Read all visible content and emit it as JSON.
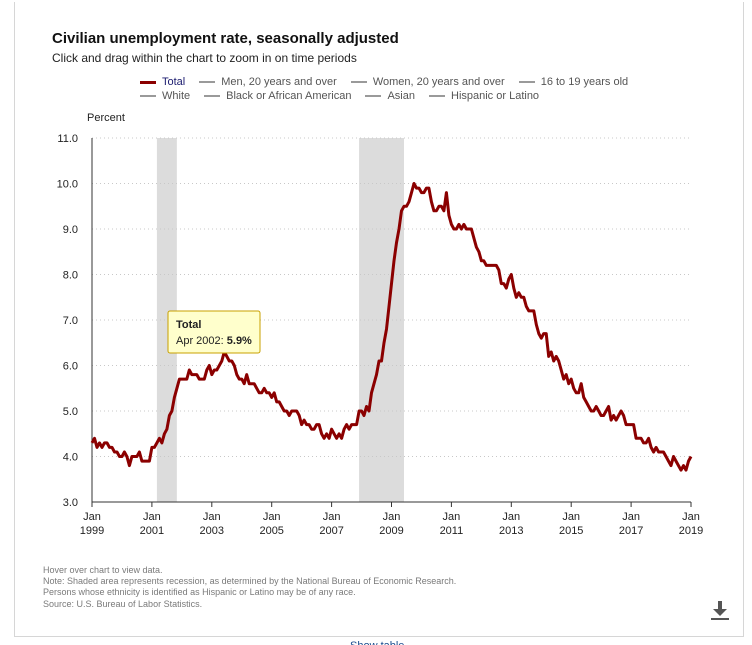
{
  "title": "Civilian unemployment rate, seasonally adjusted",
  "subtitle": "Click and drag within the chart to zoom in on time periods",
  "legend_row1": [
    "Total",
    "Men, 20 years and over",
    "Women, 20 years and over",
    "16 to 19 years old"
  ],
  "legend_row2": [
    "White",
    "Black or African American",
    "Asian",
    "Hispanic or Latino"
  ],
  "tooltip": {
    "title": "Total",
    "label": "Apr 2002: ",
    "value": "5.9%"
  },
  "notes": [
    "Hover over chart to view data.",
    "Note: Shaded area represents recession, as determined by the National Bureau of Economic Research.",
    "Persons whose ethnicity is identified as Hispanic or Latino may be of any race.",
    "Source: U.S. Bureau of Labor Statistics."
  ],
  "bottom_link": "Show table",
  "colors": {
    "series": "#8b0000",
    "recession": "#dcdcdc",
    "grid": "#c8c8c8",
    "legend_inactive": "#9a9a9a",
    "tooltip_bg": "#ffffcc",
    "tooltip_border": "#c8a000"
  },
  "icons": {
    "download": "download-icon"
  },
  "chart_data": {
    "type": "line",
    "title": "Civilian unemployment rate, seasonally adjusted",
    "ylabel": "Percent",
    "xlabel": "",
    "ylim": [
      3.0,
      11.0
    ],
    "y_ticks": [
      "3.0",
      "4.0",
      "5.0",
      "6.0",
      "7.0",
      "8.0",
      "9.0",
      "10.0",
      "11.0"
    ],
    "x_ticks": [
      [
        "Jan",
        "1999"
      ],
      [
        "Jan",
        "2001"
      ],
      [
        "Jan",
        "2003"
      ],
      [
        "Jan",
        "2005"
      ],
      [
        "Jan",
        "2007"
      ],
      [
        "Jan",
        "2009"
      ],
      [
        "Jan",
        "2011"
      ],
      [
        "Jan",
        "2013"
      ],
      [
        "Jan",
        "2015"
      ],
      [
        "Jan",
        "2017"
      ],
      [
        "Jan",
        "2019"
      ]
    ],
    "x_tick_dates": [
      "1999-01",
      "2001-01",
      "2003-01",
      "2005-01",
      "2007-01",
      "2009-01",
      "2011-01",
      "2013-01",
      "2015-01",
      "2017-01",
      "2019-01"
    ],
    "grid": true,
    "recessions": [
      [
        "2001-03",
        "2001-11"
      ],
      [
        "2007-12",
        "2009-06"
      ]
    ],
    "series": [
      {
        "name": "Total",
        "points": [
          [
            "1999-01",
            4.3
          ],
          [
            "1999-02",
            4.4
          ],
          [
            "1999-03",
            4.2
          ],
          [
            "1999-04",
            4.3
          ],
          [
            "1999-05",
            4.2
          ],
          [
            "1999-06",
            4.3
          ],
          [
            "1999-07",
            4.3
          ],
          [
            "1999-08",
            4.2
          ],
          [
            "1999-09",
            4.2
          ],
          [
            "1999-10",
            4.1
          ],
          [
            "1999-11",
            4.1
          ],
          [
            "1999-12",
            4.0
          ],
          [
            "2000-01",
            4.0
          ],
          [
            "2000-02",
            4.1
          ],
          [
            "2000-03",
            4.0
          ],
          [
            "2000-04",
            3.8
          ],
          [
            "2000-05",
            4.0
          ],
          [
            "2000-06",
            4.0
          ],
          [
            "2000-07",
            4.0
          ],
          [
            "2000-08",
            4.1
          ],
          [
            "2000-09",
            3.9
          ],
          [
            "2000-10",
            3.9
          ],
          [
            "2000-11",
            3.9
          ],
          [
            "2000-12",
            3.9
          ],
          [
            "2001-01",
            4.2
          ],
          [
            "2001-02",
            4.2
          ],
          [
            "2001-03",
            4.3
          ],
          [
            "2001-04",
            4.4
          ],
          [
            "2001-05",
            4.3
          ],
          [
            "2001-06",
            4.5
          ],
          [
            "2001-07",
            4.6
          ],
          [
            "2001-08",
            4.9
          ],
          [
            "2001-09",
            5.0
          ],
          [
            "2001-10",
            5.3
          ],
          [
            "2001-11",
            5.5
          ],
          [
            "2001-12",
            5.7
          ],
          [
            "2002-01",
            5.7
          ],
          [
            "2002-02",
            5.7
          ],
          [
            "2002-03",
            5.7
          ],
          [
            "2002-04",
            5.9
          ],
          [
            "2002-05",
            5.8
          ],
          [
            "2002-06",
            5.8
          ],
          [
            "2002-07",
            5.8
          ],
          [
            "2002-08",
            5.7
          ],
          [
            "2002-09",
            5.7
          ],
          [
            "2002-10",
            5.7
          ],
          [
            "2002-11",
            5.9
          ],
          [
            "2002-12",
            6.0
          ],
          [
            "2003-01",
            5.8
          ],
          [
            "2003-02",
            5.9
          ],
          [
            "2003-03",
            5.9
          ],
          [
            "2003-04",
            6.0
          ],
          [
            "2003-05",
            6.1
          ],
          [
            "2003-06",
            6.3
          ],
          [
            "2003-07",
            6.2
          ],
          [
            "2003-08",
            6.1
          ],
          [
            "2003-09",
            6.1
          ],
          [
            "2003-10",
            6.0
          ],
          [
            "2003-11",
            5.8
          ],
          [
            "2003-12",
            5.7
          ],
          [
            "2004-01",
            5.7
          ],
          [
            "2004-02",
            5.6
          ],
          [
            "2004-03",
            5.8
          ],
          [
            "2004-04",
            5.6
          ],
          [
            "2004-05",
            5.6
          ],
          [
            "2004-06",
            5.6
          ],
          [
            "2004-07",
            5.5
          ],
          [
            "2004-08",
            5.4
          ],
          [
            "2004-09",
            5.4
          ],
          [
            "2004-10",
            5.5
          ],
          [
            "2004-11",
            5.4
          ],
          [
            "2004-12",
            5.4
          ],
          [
            "2005-01",
            5.3
          ],
          [
            "2005-02",
            5.4
          ],
          [
            "2005-03",
            5.2
          ],
          [
            "2005-04",
            5.2
          ],
          [
            "2005-05",
            5.1
          ],
          [
            "2005-06",
            5.0
          ],
          [
            "2005-07",
            5.0
          ],
          [
            "2005-08",
            4.9
          ],
          [
            "2005-09",
            5.0
          ],
          [
            "2005-10",
            5.0
          ],
          [
            "2005-11",
            5.0
          ],
          [
            "2005-12",
            4.9
          ],
          [
            "2006-01",
            4.7
          ],
          [
            "2006-02",
            4.8
          ],
          [
            "2006-03",
            4.7
          ],
          [
            "2006-04",
            4.7
          ],
          [
            "2006-05",
            4.6
          ],
          [
            "2006-06",
            4.6
          ],
          [
            "2006-07",
            4.7
          ],
          [
            "2006-08",
            4.7
          ],
          [
            "2006-09",
            4.5
          ],
          [
            "2006-10",
            4.4
          ],
          [
            "2006-11",
            4.5
          ],
          [
            "2006-12",
            4.4
          ],
          [
            "2007-01",
            4.6
          ],
          [
            "2007-02",
            4.5
          ],
          [
            "2007-03",
            4.4
          ],
          [
            "2007-04",
            4.5
          ],
          [
            "2007-05",
            4.4
          ],
          [
            "2007-06",
            4.6
          ],
          [
            "2007-07",
            4.7
          ],
          [
            "2007-08",
            4.6
          ],
          [
            "2007-09",
            4.7
          ],
          [
            "2007-10",
            4.7
          ],
          [
            "2007-11",
            4.7
          ],
          [
            "2007-12",
            5.0
          ],
          [
            "2008-01",
            5.0
          ],
          [
            "2008-02",
            4.9
          ],
          [
            "2008-03",
            5.1
          ],
          [
            "2008-04",
            5.0
          ],
          [
            "2008-05",
            5.4
          ],
          [
            "2008-06",
            5.6
          ],
          [
            "2008-07",
            5.8
          ],
          [
            "2008-08",
            6.1
          ],
          [
            "2008-09",
            6.1
          ],
          [
            "2008-10",
            6.5
          ],
          [
            "2008-11",
            6.8
          ],
          [
            "2008-12",
            7.3
          ],
          [
            "2009-01",
            7.8
          ],
          [
            "2009-02",
            8.3
          ],
          [
            "2009-03",
            8.7
          ],
          [
            "2009-04",
            9.0
          ],
          [
            "2009-05",
            9.4
          ],
          [
            "2009-06",
            9.5
          ],
          [
            "2009-07",
            9.5
          ],
          [
            "2009-08",
            9.6
          ],
          [
            "2009-09",
            9.8
          ],
          [
            "2009-10",
            10.0
          ],
          [
            "2009-11",
            9.9
          ],
          [
            "2009-12",
            9.9
          ],
          [
            "2010-01",
            9.8
          ],
          [
            "2010-02",
            9.8
          ],
          [
            "2010-03",
            9.9
          ],
          [
            "2010-04",
            9.9
          ],
          [
            "2010-05",
            9.6
          ],
          [
            "2010-06",
            9.4
          ],
          [
            "2010-07",
            9.4
          ],
          [
            "2010-08",
            9.5
          ],
          [
            "2010-09",
            9.5
          ],
          [
            "2010-10",
            9.4
          ],
          [
            "2010-11",
            9.8
          ],
          [
            "2010-12",
            9.3
          ],
          [
            "2011-01",
            9.1
          ],
          [
            "2011-02",
            9.0
          ],
          [
            "2011-03",
            9.0
          ],
          [
            "2011-04",
            9.1
          ],
          [
            "2011-05",
            9.0
          ],
          [
            "2011-06",
            9.1
          ],
          [
            "2011-07",
            9.0
          ],
          [
            "2011-08",
            9.0
          ],
          [
            "2011-09",
            9.0
          ],
          [
            "2011-10",
            8.8
          ],
          [
            "2011-11",
            8.6
          ],
          [
            "2011-12",
            8.5
          ],
          [
            "2012-01",
            8.3
          ],
          [
            "2012-02",
            8.3
          ],
          [
            "2012-03",
            8.2
          ],
          [
            "2012-04",
            8.2
          ],
          [
            "2012-05",
            8.2
          ],
          [
            "2012-06",
            8.2
          ],
          [
            "2012-07",
            8.2
          ],
          [
            "2012-08",
            8.1
          ],
          [
            "2012-09",
            7.8
          ],
          [
            "2012-10",
            7.8
          ],
          [
            "2012-11",
            7.7
          ],
          [
            "2012-12",
            7.9
          ],
          [
            "2013-01",
            8.0
          ],
          [
            "2013-02",
            7.7
          ],
          [
            "2013-03",
            7.5
          ],
          [
            "2013-04",
            7.6
          ],
          [
            "2013-05",
            7.5
          ],
          [
            "2013-06",
            7.5
          ],
          [
            "2013-07",
            7.3
          ],
          [
            "2013-08",
            7.2
          ],
          [
            "2013-09",
            7.2
          ],
          [
            "2013-10",
            7.2
          ],
          [
            "2013-11",
            6.9
          ],
          [
            "2013-12",
            6.7
          ],
          [
            "2014-01",
            6.6
          ],
          [
            "2014-02",
            6.7
          ],
          [
            "2014-03",
            6.7
          ],
          [
            "2014-04",
            6.2
          ],
          [
            "2014-05",
            6.3
          ],
          [
            "2014-06",
            6.1
          ],
          [
            "2014-07",
            6.2
          ],
          [
            "2014-08",
            6.1
          ],
          [
            "2014-09",
            5.9
          ],
          [
            "2014-10",
            5.7
          ],
          [
            "2014-11",
            5.8
          ],
          [
            "2014-12",
            5.6
          ],
          [
            "2015-01",
            5.7
          ],
          [
            "2015-02",
            5.5
          ],
          [
            "2015-03",
            5.4
          ],
          [
            "2015-04",
            5.4
          ],
          [
            "2015-05",
            5.6
          ],
          [
            "2015-06",
            5.3
          ],
          [
            "2015-07",
            5.2
          ],
          [
            "2015-08",
            5.1
          ],
          [
            "2015-09",
            5.0
          ],
          [
            "2015-10",
            5.0
          ],
          [
            "2015-11",
            5.1
          ],
          [
            "2015-12",
            5.0
          ],
          [
            "2016-01",
            4.9
          ],
          [
            "2016-02",
            4.9
          ],
          [
            "2016-03",
            5.0
          ],
          [
            "2016-04",
            5.1
          ],
          [
            "2016-05",
            4.8
          ],
          [
            "2016-06",
            4.9
          ],
          [
            "2016-07",
            4.8
          ],
          [
            "2016-08",
            4.9
          ],
          [
            "2016-09",
            5.0
          ],
          [
            "2016-10",
            4.9
          ],
          [
            "2016-11",
            4.7
          ],
          [
            "2016-12",
            4.7
          ],
          [
            "2017-01",
            4.7
          ],
          [
            "2017-02",
            4.7
          ],
          [
            "2017-03",
            4.4
          ],
          [
            "2017-04",
            4.4
          ],
          [
            "2017-05",
            4.4
          ],
          [
            "2017-06",
            4.3
          ],
          [
            "2017-07",
            4.3
          ],
          [
            "2017-08",
            4.4
          ],
          [
            "2017-09",
            4.2
          ],
          [
            "2017-10",
            4.1
          ],
          [
            "2017-11",
            4.2
          ],
          [
            "2017-12",
            4.1
          ],
          [
            "2018-01",
            4.1
          ],
          [
            "2018-02",
            4.1
          ],
          [
            "2018-03",
            4.0
          ],
          [
            "2018-04",
            3.9
          ],
          [
            "2018-05",
            3.8
          ],
          [
            "2018-06",
            4.0
          ],
          [
            "2018-07",
            3.9
          ],
          [
            "2018-08",
            3.8
          ],
          [
            "2018-09",
            3.7
          ],
          [
            "2018-10",
            3.8
          ],
          [
            "2018-11",
            3.7
          ],
          [
            "2018-12",
            3.9
          ],
          [
            "2019-01",
            4.0
          ]
        ]
      }
    ],
    "highlight": {
      "date": "2002-04",
      "value": 5.9
    }
  }
}
